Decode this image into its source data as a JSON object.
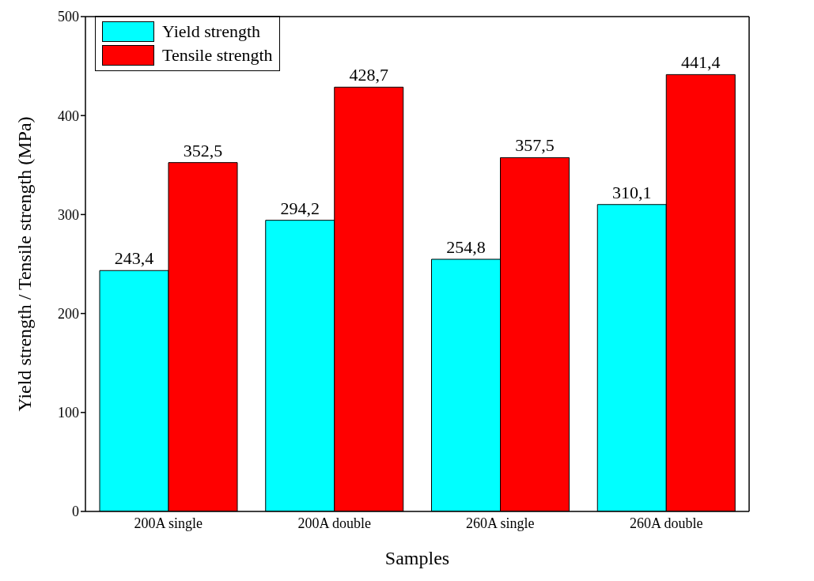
{
  "chart_data": {
    "type": "bar",
    "xlabel": "Samples",
    "ylabel": "Yield strength / Tensile strength (MPa)",
    "categories": [
      "200A single",
      "200A double",
      "260A single",
      "260A double"
    ],
    "series": [
      {
        "name": "Yield strength",
        "color": "#00ffff",
        "values": [
          243.4,
          294.2,
          254.8,
          310.1
        ],
        "value_labels": [
          "243,4",
          "294,2",
          "254,8",
          "310,1"
        ]
      },
      {
        "name": "Tensile strength",
        "color": "#ff0000",
        "values": [
          352.5,
          428.7,
          357.5,
          441.4
        ],
        "value_labels": [
          "352,5",
          "428,7",
          "357,5",
          "441,4"
        ]
      }
    ],
    "ylim": [
      0,
      500
    ],
    "yticks": [
      0,
      100,
      200,
      300,
      400,
      500
    ],
    "legend": "top left"
  }
}
